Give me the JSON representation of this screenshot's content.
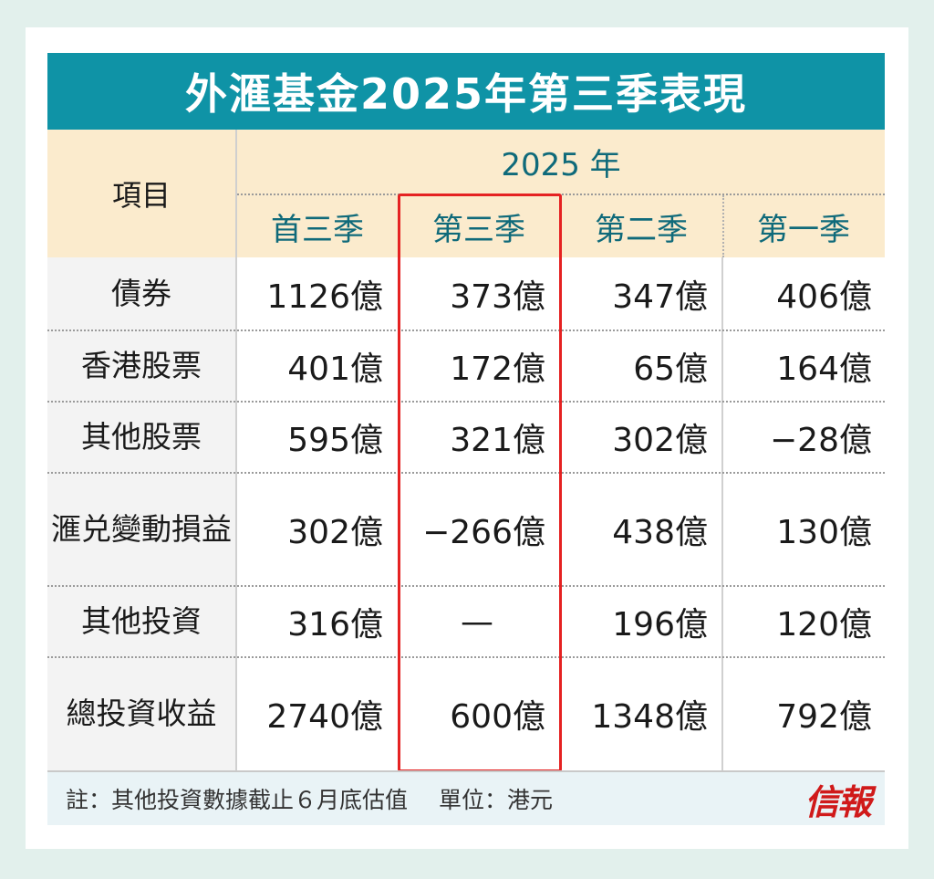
{
  "title": "外滙基金2025年第三季表現",
  "header": {
    "item_label": "項目",
    "year_label": "2025 年",
    "columns": [
      "首三季",
      "第三季",
      "第二季",
      "第一季"
    ]
  },
  "rows": [
    {
      "label": "債券",
      "values": [
        "1126億",
        "373億",
        "347億",
        "406億"
      ]
    },
    {
      "label": "香港股票",
      "values": [
        "401億",
        "172億",
        "65億",
        "164億"
      ]
    },
    {
      "label": "其他股票",
      "values": [
        "595億",
        "321億",
        "302億",
        "−28億"
      ]
    },
    {
      "label_lines": [
        "滙兑",
        "變動損益"
      ],
      "values": [
        "302億",
        "−266億",
        "438億",
        "130億"
      ]
    },
    {
      "label": "其他投資",
      "values": [
        "316億",
        "—",
        "196億",
        "120億"
      ]
    },
    {
      "label_lines": [
        "總投資",
        "收益"
      ],
      "values": [
        "2740億",
        "600億",
        "1348億",
        "792億"
      ]
    }
  ],
  "footer": {
    "note": "註：其他投資數據截止６月底估值",
    "unit": "單位：港元",
    "logo": "信報"
  },
  "colors": {
    "title_bg": "#0f93a6",
    "header_bg": "#fbebcd",
    "header_text": "#0f6a7a",
    "highlight": "#e52222",
    "logo": "#d01a1a"
  }
}
